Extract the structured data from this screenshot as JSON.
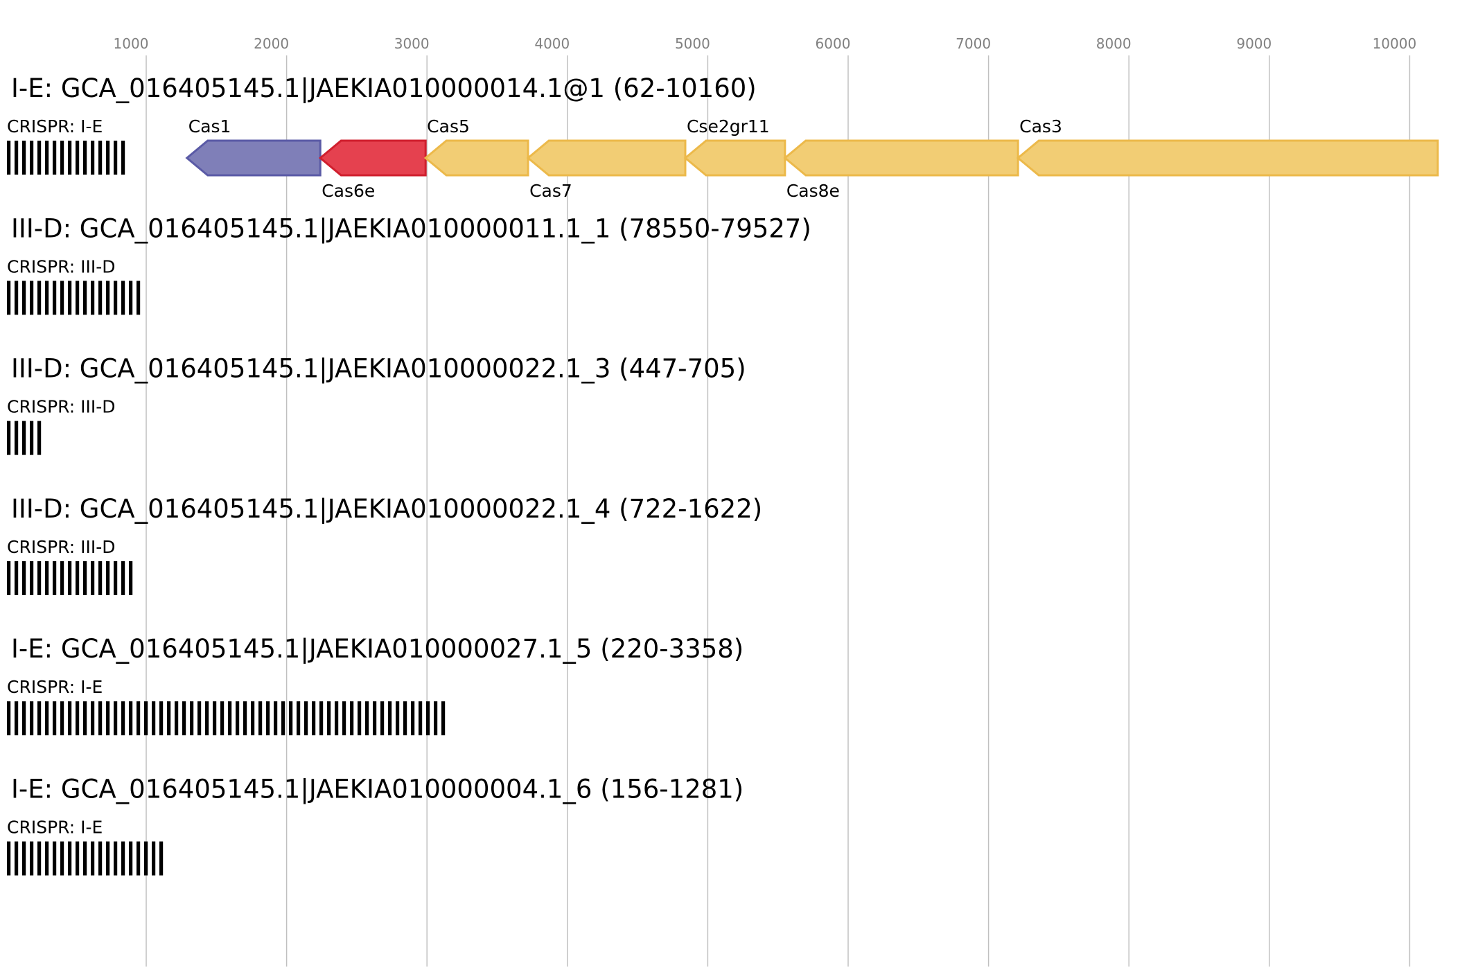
{
  "axis": {
    "ticks": [
      1000,
      2000,
      3000,
      4000,
      5000,
      6000,
      7000,
      8000,
      9000,
      10000
    ],
    "grid": true
  },
  "loci": [
    {
      "title": "I-E: GCA_016405145.1|JAEKIA010000014.1@1 (62-10160)",
      "crispr_label": "CRISPR: I-E",
      "repeat_count": 16,
      "genes": [
        {
          "name": "Cas1",
          "start": 1290,
          "end": 2240,
          "strand": "-",
          "color": "#7f7fb8",
          "stroke": "#5a5aa6",
          "label_pos": "top"
        },
        {
          "name": "Cas6e",
          "start": 2240,
          "end": 2990,
          "strand": "-",
          "color": "#e5414f",
          "stroke": "#d01f2e",
          "label_pos": "bottom"
        },
        {
          "name": "Cas5",
          "start": 2990,
          "end": 3720,
          "strand": "-",
          "color": "#f2cd74",
          "stroke": "#ecb94a",
          "label_pos": "top"
        },
        {
          "name": "Cas7",
          "start": 3720,
          "end": 4840,
          "strand": "-",
          "color": "#f2cd74",
          "stroke": "#ecb94a",
          "label_pos": "bottom"
        },
        {
          "name": "Cse2gr11",
          "start": 4840,
          "end": 5550,
          "strand": "-",
          "color": "#f2cd74",
          "stroke": "#ecb94a",
          "label_pos": "top"
        },
        {
          "name": "Cas8e",
          "start": 5550,
          "end": 7210,
          "strand": "-",
          "color": "#f2cd74",
          "stroke": "#ecb94a",
          "label_pos": "bottom"
        },
        {
          "name": "Cas3",
          "start": 7210,
          "end": 10200,
          "strand": "-",
          "color": "#f2cd74",
          "stroke": "#ecb94a",
          "label_pos": "top"
        }
      ]
    },
    {
      "title": "III-D: GCA_016405145.1|JAEKIA010000011.1_1 (78550-79527)",
      "crispr_label": "CRISPR: III-D",
      "repeat_count": 18,
      "genes": []
    },
    {
      "title": "III-D: GCA_016405145.1|JAEKIA010000022.1_3 (447-705)",
      "crispr_label": "CRISPR: III-D",
      "repeat_count": 5,
      "genes": []
    },
    {
      "title": "III-D: GCA_016405145.1|JAEKIA010000022.1_4 (722-1622)",
      "crispr_label": "CRISPR: III-D",
      "repeat_count": 17,
      "genes": []
    },
    {
      "title": "I-E: GCA_016405145.1|JAEKIA010000027.1_5 (220-3358)",
      "crispr_label": "CRISPR: I-E",
      "repeat_count": 58,
      "genes": []
    },
    {
      "title": "I-E: GCA_016405145.1|JAEKIA010000004.1_6 (156-1281)",
      "crispr_label": "CRISPR: I-E",
      "repeat_count": 21,
      "genes": []
    }
  ]
}
